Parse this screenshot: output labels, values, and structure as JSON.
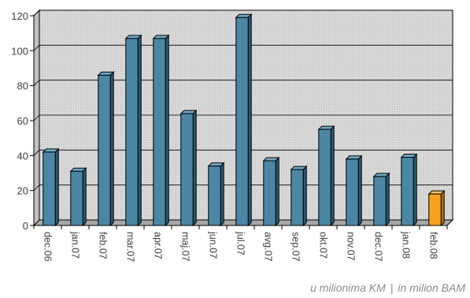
{
  "chart_data": {
    "type": "bar",
    "categories": [
      "dec.06",
      "jan.07",
      "feb.07",
      "mar.07",
      "apr.07",
      "maj.07",
      "jun.07",
      "jul.07",
      "avg.07",
      "sep.07",
      "okt.07",
      "nov.07",
      "dec.07",
      "jan.08",
      "feb.08"
    ],
    "values": [
      42,
      31,
      86,
      107,
      107,
      64,
      34,
      119,
      37,
      32,
      55,
      38,
      28,
      39,
      18
    ],
    "highlight_index": 14,
    "ylim": [
      0,
      120
    ],
    "yticks": [
      0,
      20,
      40,
      60,
      80,
      100,
      120
    ],
    "grid": true,
    "legend": "none",
    "colors": {
      "bar": "#4b86a4",
      "bar_side": "#2c5a72",
      "bar_top": "#6fa8c4",
      "highlight": "#f6a21c",
      "highlight_side": "#b86e08",
      "highlight_top": "#fbc15c",
      "plot_bg": "#d9d9d9",
      "gridline": "#000000"
    }
  },
  "footnote": {
    "left": "u milionima KM",
    "separator": "|",
    "right": "in milion BAM"
  }
}
